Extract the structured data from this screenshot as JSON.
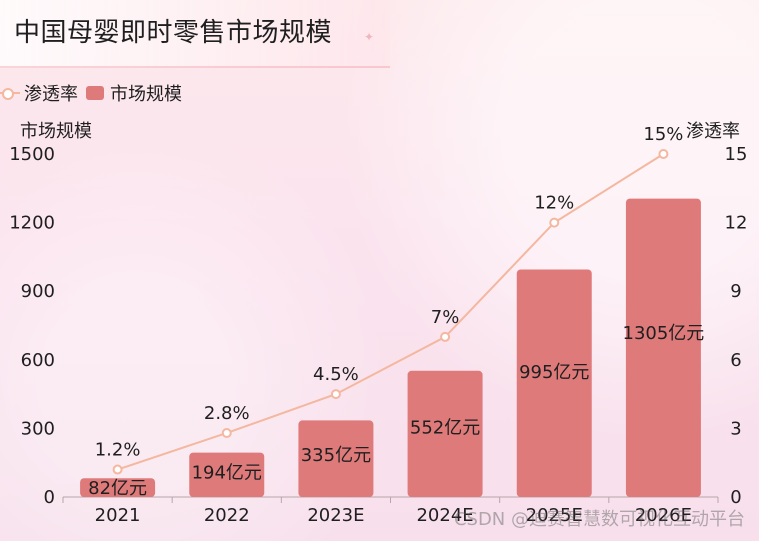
{
  "header": {
    "title": "中国母婴即时零售市场规模"
  },
  "legend": {
    "line_label": "渗透率",
    "bar_label": "市场规模"
  },
  "watermark": "CSDN @迪赛智慧数可视化互动平台",
  "chart_data": {
    "type": "bar",
    "categories": [
      "2021",
      "2022",
      "2023E",
      "2024E",
      "2025E",
      "2026E"
    ],
    "series": [
      {
        "name": "市场规模",
        "type": "bar",
        "axis": "left",
        "values": [
          82,
          194,
          335,
          552,
          995,
          1305
        ],
        "labels": [
          "82亿元",
          "194亿元",
          "335亿元",
          "552亿元",
          "995亿元",
          "1305亿元"
        ],
        "color": "#df7a7b"
      },
      {
        "name": "渗透率",
        "type": "line",
        "axis": "right",
        "values": [
          1.2,
          2.8,
          4.5,
          7,
          12,
          15
        ],
        "labels": [
          "1.2%",
          "2.8%",
          "4.5%",
          "7%",
          "12%",
          "15%"
        ],
        "color": "#f4b7a0"
      }
    ],
    "ylabel_left": "市场规模",
    "ylabel_right": "渗透率",
    "ylim_left": [
      0,
      1500
    ],
    "ylim_right": [
      0,
      15
    ],
    "yticks_left": [
      "0",
      "300",
      "600",
      "900",
      "1200",
      "1500"
    ],
    "yticks_right": [
      "0",
      "3",
      "6",
      "9",
      "12",
      "15"
    ],
    "grid": false,
    "legend_position": "top-left"
  }
}
